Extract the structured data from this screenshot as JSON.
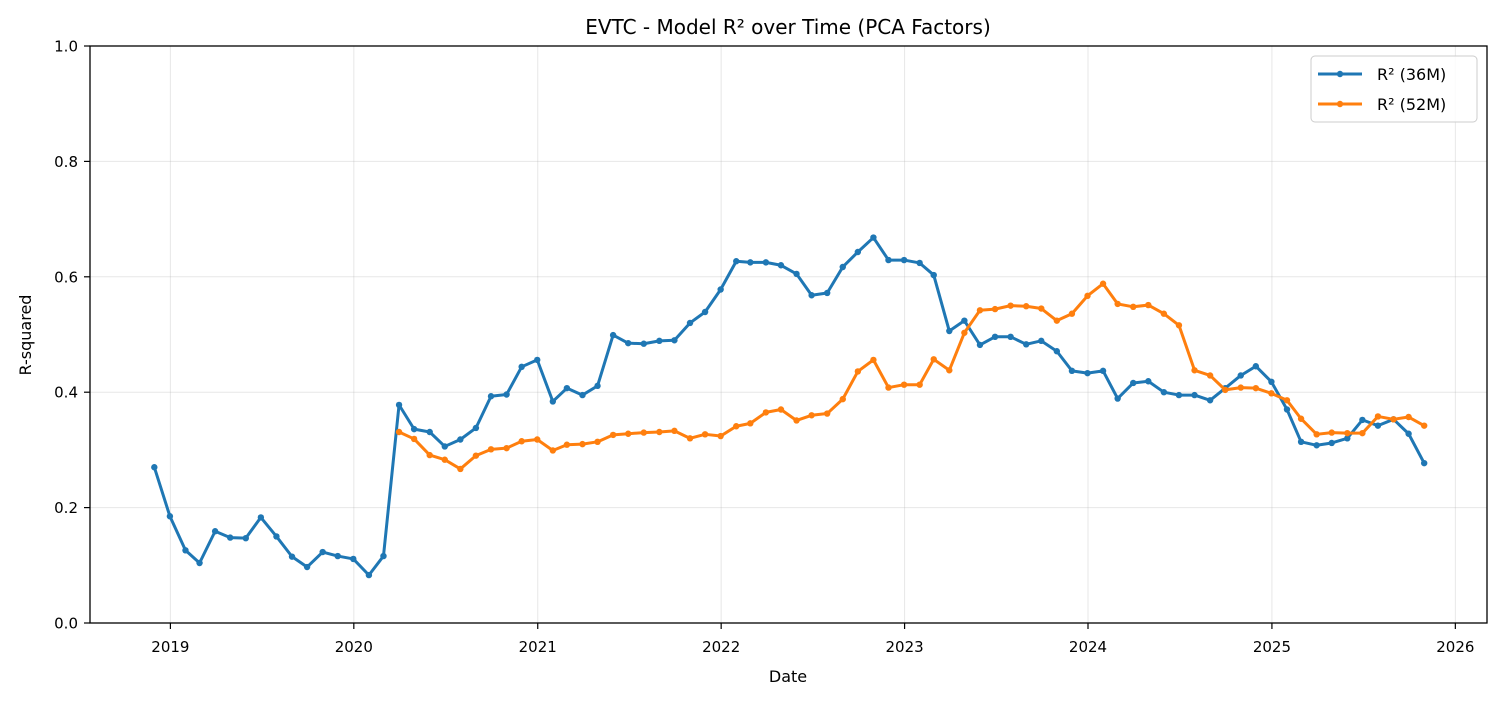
{
  "chart_data": {
    "type": "line",
    "title": "EVTC - Model R² over Time (PCA Factors)",
    "xlabel": "Date",
    "ylabel": "R-squared",
    "ylim": [
      0,
      1.0
    ],
    "xlim": [
      "2018-07-25",
      "2026-03-05"
    ],
    "x_ticks": [
      "2019",
      "2020",
      "2021",
      "2022",
      "2023",
      "2024",
      "2025",
      "2026"
    ],
    "y_ticks": [
      "0.0",
      "0.2",
      "0.4",
      "0.6",
      "0.8",
      "1.0"
    ],
    "grid": true,
    "legend_position": "top-right",
    "series": [
      {
        "name": "R² (36M)",
        "color": "#1f77b4",
        "points": [
          [
            "2018-11-30",
            0.27
          ],
          [
            "2018-12-31",
            0.185
          ],
          [
            "2019-01-31",
            0.126
          ],
          [
            "2019-02-28",
            0.104
          ],
          [
            "2019-03-31",
            0.159
          ],
          [
            "2019-04-30",
            0.148
          ],
          [
            "2019-05-31",
            0.147
          ],
          [
            "2019-06-30",
            0.183
          ],
          [
            "2019-07-31",
            0.15
          ],
          [
            "2019-08-31",
            0.115
          ],
          [
            "2019-09-30",
            0.097
          ],
          [
            "2019-10-31",
            0.123
          ],
          [
            "2019-11-30",
            0.116
          ],
          [
            "2019-12-31",
            0.111
          ],
          [
            "2020-01-31",
            0.083
          ],
          [
            "2020-02-29",
            0.116
          ],
          [
            "2020-03-31",
            0.378
          ],
          [
            "2020-04-30",
            0.336
          ],
          [
            "2020-05-31",
            0.331
          ],
          [
            "2020-06-30",
            0.306
          ],
          [
            "2020-07-31",
            0.318
          ],
          [
            "2020-08-31",
            0.338
          ],
          [
            "2020-09-30",
            0.393
          ],
          [
            "2020-10-31",
            0.396
          ],
          [
            "2020-11-30",
            0.444
          ],
          [
            "2020-12-31",
            0.456
          ],
          [
            "2021-01-31",
            0.384
          ],
          [
            "2021-02-28",
            0.407
          ],
          [
            "2021-03-31",
            0.395
          ],
          [
            "2021-04-30",
            0.411
          ],
          [
            "2021-05-31",
            0.499
          ],
          [
            "2021-06-30",
            0.485
          ],
          [
            "2021-07-31",
            0.484
          ],
          [
            "2021-08-31",
            0.489
          ],
          [
            "2021-09-30",
            0.49
          ],
          [
            "2021-10-31",
            0.52
          ],
          [
            "2021-11-30",
            0.539
          ],
          [
            "2021-12-31",
            0.578
          ],
          [
            "2022-01-31",
            0.627
          ],
          [
            "2022-02-28",
            0.625
          ],
          [
            "2022-03-31",
            0.625
          ],
          [
            "2022-04-30",
            0.62
          ],
          [
            "2022-05-31",
            0.605
          ],
          [
            "2022-06-30",
            0.568
          ],
          [
            "2022-07-31",
            0.572
          ],
          [
            "2022-08-31",
            0.617
          ],
          [
            "2022-09-30",
            0.643
          ],
          [
            "2022-10-31",
            0.668
          ],
          [
            "2022-11-30",
            0.629
          ],
          [
            "2022-12-31",
            0.629
          ],
          [
            "2023-01-31",
            0.624
          ],
          [
            "2023-02-28",
            0.603
          ],
          [
            "2023-03-31",
            0.506
          ],
          [
            "2023-04-30",
            0.524
          ],
          [
            "2023-05-31",
            0.482
          ],
          [
            "2023-06-30",
            0.496
          ],
          [
            "2023-07-31",
            0.496
          ],
          [
            "2023-08-31",
            0.483
          ],
          [
            "2023-09-30",
            0.489
          ],
          [
            "2023-10-31",
            0.471
          ],
          [
            "2023-11-30",
            0.437
          ],
          [
            "2023-12-31",
            0.433
          ],
          [
            "2024-01-31",
            0.437
          ],
          [
            "2024-02-29",
            0.389
          ],
          [
            "2024-03-31",
            0.416
          ],
          [
            "2024-04-30",
            0.419
          ],
          [
            "2024-05-31",
            0.4
          ],
          [
            "2024-06-30",
            0.395
          ],
          [
            "2024-07-31",
            0.395
          ],
          [
            "2024-08-31",
            0.386
          ],
          [
            "2024-09-30",
            0.407
          ],
          [
            "2024-10-31",
            0.429
          ],
          [
            "2024-11-30",
            0.445
          ],
          [
            "2024-12-31",
            0.418
          ],
          [
            "2025-01-31",
            0.37
          ],
          [
            "2025-02-28",
            0.314
          ],
          [
            "2025-03-31",
            0.308
          ],
          [
            "2025-04-30",
            0.312
          ],
          [
            "2025-05-31",
            0.32
          ],
          [
            "2025-06-30",
            0.352
          ],
          [
            "2025-07-31",
            0.342
          ],
          [
            "2025-08-31",
            0.353
          ],
          [
            "2025-09-30",
            0.328
          ],
          [
            "2025-10-31",
            0.277
          ]
        ]
      },
      {
        "name": "R² (52M)",
        "color": "#ff7f0e",
        "points": [
          [
            "2020-03-31",
            0.331
          ],
          [
            "2020-04-30",
            0.319
          ],
          [
            "2020-05-31",
            0.291
          ],
          [
            "2020-06-30",
            0.283
          ],
          [
            "2020-07-31",
            0.267
          ],
          [
            "2020-08-31",
            0.29
          ],
          [
            "2020-09-30",
            0.301
          ],
          [
            "2020-10-31",
            0.303
          ],
          [
            "2020-11-30",
            0.315
          ],
          [
            "2020-12-31",
            0.318
          ],
          [
            "2021-01-31",
            0.299
          ],
          [
            "2021-02-28",
            0.309
          ],
          [
            "2021-03-31",
            0.31
          ],
          [
            "2021-04-30",
            0.314
          ],
          [
            "2021-05-31",
            0.326
          ],
          [
            "2021-06-30",
            0.328
          ],
          [
            "2021-07-31",
            0.33
          ],
          [
            "2021-08-31",
            0.331
          ],
          [
            "2021-09-30",
            0.333
          ],
          [
            "2021-10-31",
            0.32
          ],
          [
            "2021-11-30",
            0.327
          ],
          [
            "2021-12-31",
            0.324
          ],
          [
            "2022-01-31",
            0.341
          ],
          [
            "2022-02-28",
            0.346
          ],
          [
            "2022-03-31",
            0.365
          ],
          [
            "2022-04-30",
            0.37
          ],
          [
            "2022-05-31",
            0.351
          ],
          [
            "2022-06-30",
            0.36
          ],
          [
            "2022-07-31",
            0.363
          ],
          [
            "2022-08-31",
            0.388
          ],
          [
            "2022-09-30",
            0.436
          ],
          [
            "2022-10-31",
            0.456
          ],
          [
            "2022-11-30",
            0.408
          ],
          [
            "2022-12-31",
            0.413
          ],
          [
            "2023-01-31",
            0.413
          ],
          [
            "2023-02-28",
            0.457
          ],
          [
            "2023-03-31",
            0.438
          ],
          [
            "2023-04-30",
            0.503
          ],
          [
            "2023-05-31",
            0.542
          ],
          [
            "2023-06-30",
            0.544
          ],
          [
            "2023-07-31",
            0.55
          ],
          [
            "2023-08-31",
            0.549
          ],
          [
            "2023-09-30",
            0.545
          ],
          [
            "2023-10-31",
            0.524
          ],
          [
            "2023-11-30",
            0.536
          ],
          [
            "2023-12-31",
            0.567
          ],
          [
            "2024-01-31",
            0.588
          ],
          [
            "2024-02-29",
            0.553
          ],
          [
            "2024-03-31",
            0.548
          ],
          [
            "2024-04-30",
            0.551
          ],
          [
            "2024-05-31",
            0.536
          ],
          [
            "2024-06-30",
            0.516
          ],
          [
            "2024-07-31",
            0.438
          ],
          [
            "2024-08-31",
            0.429
          ],
          [
            "2024-09-30",
            0.404
          ],
          [
            "2024-10-31",
            0.408
          ],
          [
            "2024-11-30",
            0.407
          ],
          [
            "2024-12-31",
            0.398
          ],
          [
            "2025-01-31",
            0.386
          ],
          [
            "2025-02-28",
            0.354
          ],
          [
            "2025-03-31",
            0.327
          ],
          [
            "2025-04-30",
            0.33
          ],
          [
            "2025-05-31",
            0.329
          ],
          [
            "2025-06-30",
            0.329
          ],
          [
            "2025-07-31",
            0.358
          ],
          [
            "2025-08-31",
            0.353
          ],
          [
            "2025-09-30",
            0.357
          ],
          [
            "2025-10-31",
            0.342
          ]
        ]
      }
    ]
  }
}
